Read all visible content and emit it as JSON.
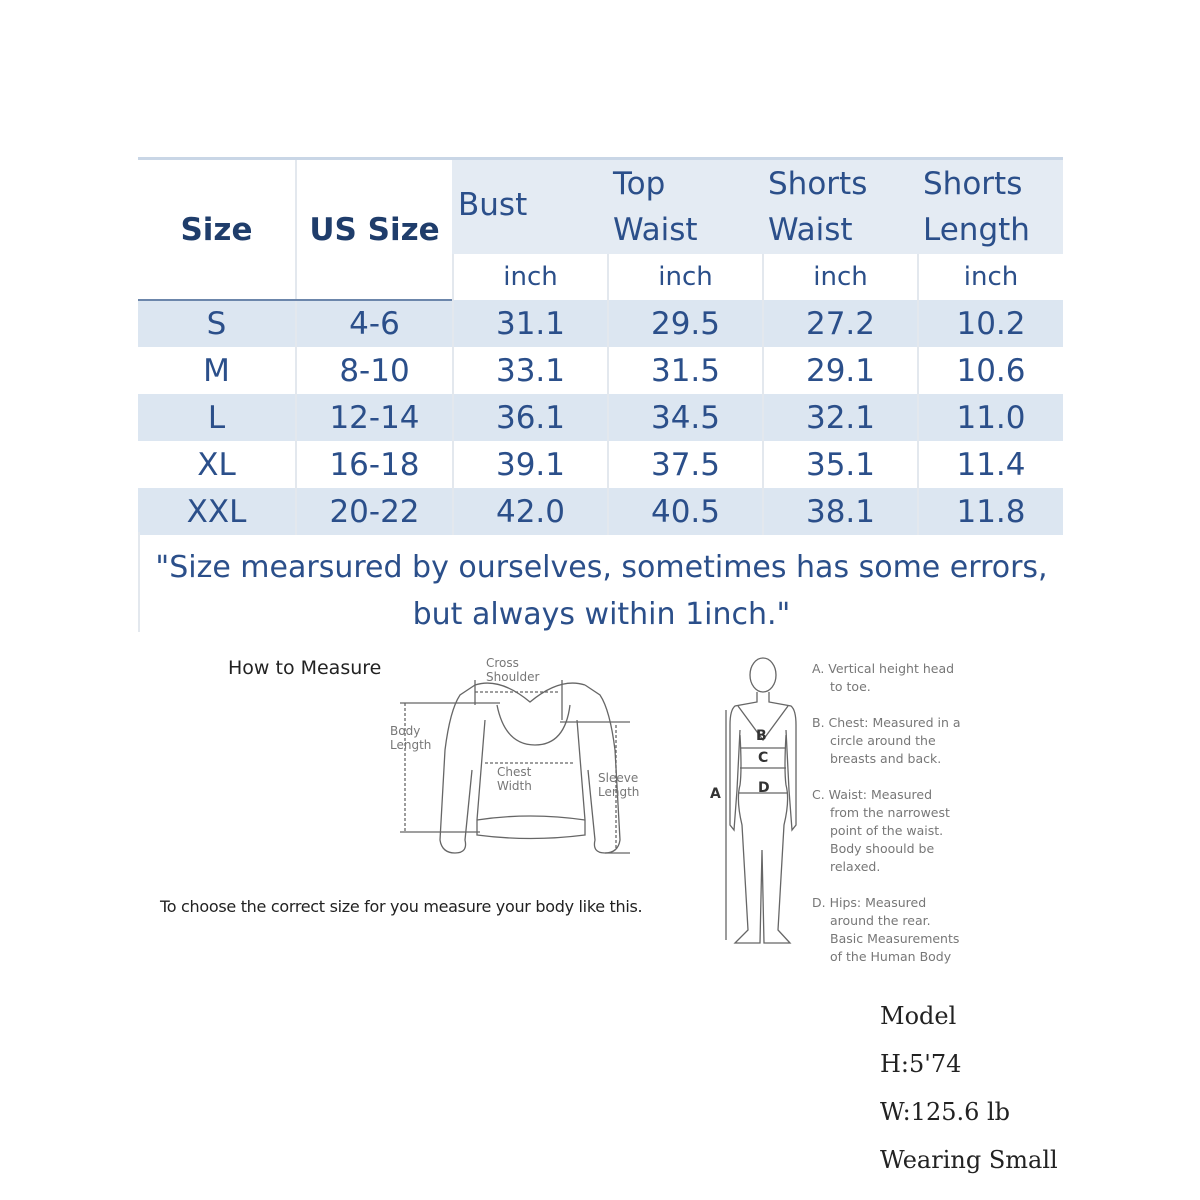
{
  "table": {
    "headers": {
      "size": "Size",
      "us_size": "US Size",
      "bust": "Bust",
      "top_waist_1": "Top",
      "top_waist_2": "Waist",
      "shorts_waist_1": "Shorts",
      "shorts_waist_2": "Waist",
      "shorts_length_1": "Shorts",
      "shorts_length_2": "Length",
      "unit": "inch"
    },
    "rows": [
      [
        "S",
        "4-6",
        "31.1",
        "29.5",
        "27.2",
        "10.2"
      ],
      [
        "M",
        "8-10",
        "33.1",
        "31.5",
        "29.1",
        "10.6"
      ],
      [
        "L",
        "12-14",
        "36.1",
        "34.5",
        "32.1",
        "11.0"
      ],
      [
        "XL",
        "16-18",
        "39.1",
        "37.5",
        "35.1",
        "11.4"
      ],
      [
        "XXL",
        "20-22",
        "42.0",
        "40.5",
        "38.1",
        "11.8"
      ]
    ]
  },
  "note": {
    "line1": "\"Size mearsured by ourselves, sometimes has some errors,",
    "line2": "but always within 1inch.\""
  },
  "measure": {
    "title": "How to Measure",
    "cross_shoulder_1": "Cross",
    "cross_shoulder_2": "Shoulder",
    "body_length_1": "Body",
    "body_length_2": "Length",
    "chest_width_1": "Chest",
    "chest_width_2": "Width",
    "sleeve_length_1": "Sleeve",
    "sleeve_length_2": "Length",
    "instruction": "To choose the correct size for you measure your body like this."
  },
  "body": {
    "labels": [
      "A",
      "B",
      "C",
      "D"
    ],
    "notes": [
      [
        "A. Vertical height head",
        "to toe."
      ],
      [
        "B. Chest: Measured in a",
        "circle around the",
        "breasts and back."
      ],
      [
        "C. Waist: Measured",
        "from the narrowest",
        "point of the waist.",
        "Body shoould be",
        "relaxed."
      ],
      [
        "D. Hips: Measured",
        "around the rear.",
        "Basic Measurements",
        "of the Human Body"
      ]
    ]
  },
  "model": {
    "title": "Model",
    "height": "H:5'74",
    "weight": "W:125.6 lb",
    "wearing": "Wearing Small"
  },
  "colors": {
    "header_text": "#1f3d6b",
    "text": "#2b4f8a",
    "band": "#dce6f1",
    "header_bg": "#e4ebf3"
  }
}
